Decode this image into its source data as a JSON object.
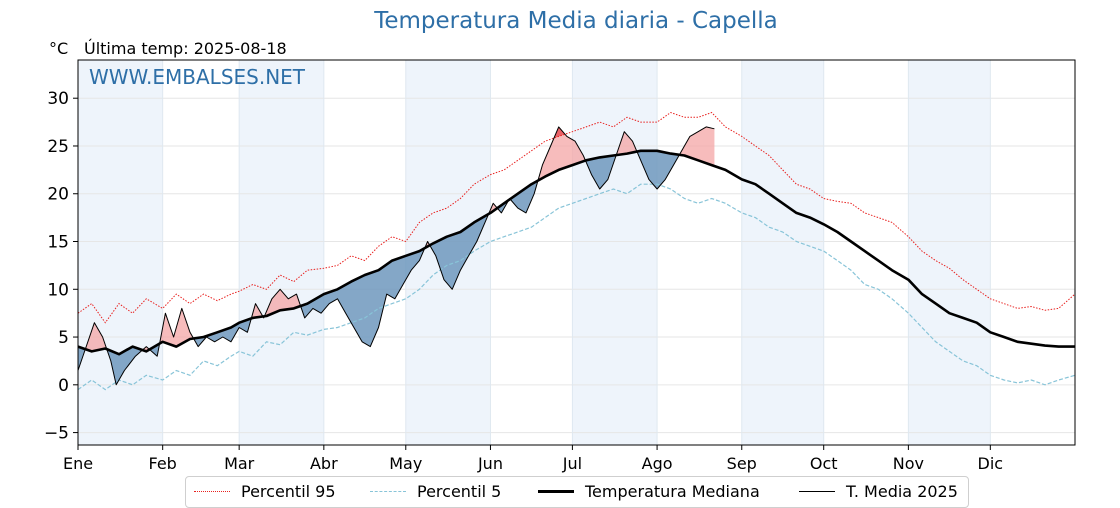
{
  "chart_data": {
    "type": "line",
    "title": "Temperatura Media diaria - Capella",
    "unit_label": "°C",
    "last_temp_label": "Última temp: 2025-08-18",
    "watermark": "WWW.EMBALSES.NET",
    "ylim": [
      -6.3,
      34.0
    ],
    "yticks": [
      -5,
      0,
      5,
      10,
      15,
      20,
      25,
      30
    ],
    "xlim": [
      1,
      366
    ],
    "month_labels": [
      "Ene",
      "Feb",
      "Mar",
      "Abr",
      "May",
      "Jun",
      "Jul",
      "Ago",
      "Sep",
      "Oct",
      "Nov",
      "Dic"
    ],
    "month_starts": [
      1,
      32,
      60,
      91,
      121,
      152,
      182,
      213,
      244,
      274,
      305,
      335
    ],
    "grid": true,
    "legend_position": "bottom",
    "colors": {
      "p95": "#e8211f",
      "p5": "#88c4d8",
      "median": "#000000",
      "t2025": "#000000",
      "above_fill": "#f4a6a6",
      "above_fill_strong": "#e8585d",
      "below_fill": "#6f98bd",
      "stripe": "#eef4fb",
      "title": "#2e6fa7",
      "watermark": "#2e6fa7"
    },
    "series": [
      {
        "name": "Percentil 95",
        "style": "dotted-red",
        "points": [
          [
            1,
            7.5
          ],
          [
            6,
            8.5
          ],
          [
            11,
            6.5
          ],
          [
            16,
            8.5
          ],
          [
            21,
            7.5
          ],
          [
            26,
            9
          ],
          [
            32,
            8
          ],
          [
            37,
            9.5
          ],
          [
            42,
            8.5
          ],
          [
            47,
            9.5
          ],
          [
            52,
            8.8
          ],
          [
            57,
            9.5
          ],
          [
            60,
            9.8
          ],
          [
            65,
            10.5
          ],
          [
            70,
            10
          ],
          [
            75,
            11.5
          ],
          [
            80,
            10.8
          ],
          [
            85,
            12
          ],
          [
            91,
            12.2
          ],
          [
            96,
            12.5
          ],
          [
            101,
            13.5
          ],
          [
            106,
            13
          ],
          [
            111,
            14.5
          ],
          [
            116,
            15.5
          ],
          [
            121,
            15
          ],
          [
            126,
            17
          ],
          [
            131,
            18
          ],
          [
            136,
            18.5
          ],
          [
            141,
            19.5
          ],
          [
            146,
            21
          ],
          [
            152,
            22
          ],
          [
            157,
            22.5
          ],
          [
            162,
            23.5
          ],
          [
            167,
            24.5
          ],
          [
            172,
            25.5
          ],
          [
            177,
            26
          ],
          [
            182,
            26.5
          ],
          [
            187,
            27
          ],
          [
            192,
            27.5
          ],
          [
            197,
            27
          ],
          [
            202,
            28
          ],
          [
            207,
            27.5
          ],
          [
            213,
            27.5
          ],
          [
            218,
            28.5
          ],
          [
            223,
            28
          ],
          [
            228,
            28
          ],
          [
            233,
            28.5
          ],
          [
            238,
            27
          ],
          [
            244,
            26
          ],
          [
            249,
            25
          ],
          [
            254,
            24
          ],
          [
            259,
            22.5
          ],
          [
            264,
            21
          ],
          [
            269,
            20.5
          ],
          [
            274,
            19.5
          ],
          [
            279,
            19.2
          ],
          [
            284,
            19
          ],
          [
            289,
            18
          ],
          [
            294,
            17.5
          ],
          [
            299,
            17
          ],
          [
            305,
            15.5
          ],
          [
            310,
            14
          ],
          [
            315,
            13
          ],
          [
            320,
            12.2
          ],
          [
            325,
            11
          ],
          [
            330,
            10
          ],
          [
            335,
            9
          ],
          [
            340,
            8.5
          ],
          [
            345,
            8
          ],
          [
            350,
            8.2
          ],
          [
            355,
            7.8
          ],
          [
            360,
            8
          ],
          [
            366,
            9.5
          ]
        ]
      },
      {
        "name": "Percentil 5",
        "style": "dashed-lightblue",
        "points": [
          [
            1,
            -0.5
          ],
          [
            6,
            0.5
          ],
          [
            11,
            -0.5
          ],
          [
            16,
            0.5
          ],
          [
            21,
            0
          ],
          [
            26,
            1
          ],
          [
            32,
            0.5
          ],
          [
            37,
            1.5
          ],
          [
            42,
            1
          ],
          [
            47,
            2.5
          ],
          [
            52,
            2
          ],
          [
            57,
            3
          ],
          [
            60,
            3.5
          ],
          [
            65,
            3
          ],
          [
            70,
            4.5
          ],
          [
            75,
            4.2
          ],
          [
            80,
            5.5
          ],
          [
            85,
            5.2
          ],
          [
            91,
            5.8
          ],
          [
            96,
            6
          ],
          [
            101,
            6.5
          ],
          [
            106,
            7
          ],
          [
            111,
            8
          ],
          [
            116,
            8.5
          ],
          [
            121,
            9
          ],
          [
            126,
            10
          ],
          [
            131,
            11.5
          ],
          [
            136,
            12.5
          ],
          [
            141,
            13
          ],
          [
            146,
            14
          ],
          [
            152,
            15
          ],
          [
            157,
            15.5
          ],
          [
            162,
            16
          ],
          [
            167,
            16.5
          ],
          [
            172,
            17.5
          ],
          [
            177,
            18.5
          ],
          [
            182,
            19
          ],
          [
            187,
            19.5
          ],
          [
            192,
            20
          ],
          [
            197,
            20.5
          ],
          [
            202,
            20
          ],
          [
            207,
            21
          ],
          [
            213,
            21
          ],
          [
            218,
            20.5
          ],
          [
            223,
            19.5
          ],
          [
            228,
            19
          ],
          [
            233,
            19.5
          ],
          [
            238,
            19
          ],
          [
            244,
            18
          ],
          [
            249,
            17.5
          ],
          [
            254,
            16.5
          ],
          [
            259,
            16
          ],
          [
            264,
            15
          ],
          [
            269,
            14.5
          ],
          [
            274,
            14
          ],
          [
            279,
            13
          ],
          [
            284,
            12
          ],
          [
            289,
            10.5
          ],
          [
            294,
            10
          ],
          [
            299,
            9
          ],
          [
            305,
            7.5
          ],
          [
            310,
            6
          ],
          [
            315,
            4.5
          ],
          [
            320,
            3.5
          ],
          [
            325,
            2.5
          ],
          [
            330,
            2
          ],
          [
            335,
            1
          ],
          [
            340,
            0.5
          ],
          [
            345,
            0.2
          ],
          [
            350,
            0.5
          ],
          [
            355,
            0
          ],
          [
            360,
            0.5
          ],
          [
            366,
            1
          ]
        ]
      },
      {
        "name": "Temperatura Mediana",
        "style": "thick-black",
        "points": [
          [
            1,
            4
          ],
          [
            6,
            3.5
          ],
          [
            11,
            3.8
          ],
          [
            16,
            3.2
          ],
          [
            21,
            4
          ],
          [
            26,
            3.5
          ],
          [
            32,
            4.5
          ],
          [
            37,
            4
          ],
          [
            42,
            4.8
          ],
          [
            47,
            5
          ],
          [
            52,
            5.5
          ],
          [
            57,
            6
          ],
          [
            60,
            6.5
          ],
          [
            65,
            7
          ],
          [
            70,
            7.2
          ],
          [
            75,
            7.8
          ],
          [
            80,
            8
          ],
          [
            85,
            8.5
          ],
          [
            91,
            9.5
          ],
          [
            96,
            10
          ],
          [
            101,
            10.8
          ],
          [
            106,
            11.5
          ],
          [
            111,
            12
          ],
          [
            116,
            13
          ],
          [
            121,
            13.5
          ],
          [
            126,
            14
          ],
          [
            131,
            14.8
          ],
          [
            136,
            15.5
          ],
          [
            141,
            16
          ],
          [
            146,
            17
          ],
          [
            152,
            18
          ],
          [
            157,
            19
          ],
          [
            162,
            20
          ],
          [
            167,
            21
          ],
          [
            172,
            21.8
          ],
          [
            177,
            22.5
          ],
          [
            182,
            23
          ],
          [
            187,
            23.5
          ],
          [
            192,
            23.8
          ],
          [
            197,
            24
          ],
          [
            202,
            24.2
          ],
          [
            207,
            24.5
          ],
          [
            213,
            24.5
          ],
          [
            218,
            24.2
          ],
          [
            223,
            24
          ],
          [
            228,
            23.5
          ],
          [
            233,
            23
          ],
          [
            238,
            22.5
          ],
          [
            244,
            21.5
          ],
          [
            249,
            21
          ],
          [
            254,
            20
          ],
          [
            259,
            19
          ],
          [
            264,
            18
          ],
          [
            269,
            17.5
          ],
          [
            274,
            16.8
          ],
          [
            279,
            16
          ],
          [
            284,
            15
          ],
          [
            289,
            14
          ],
          [
            294,
            13
          ],
          [
            299,
            12
          ],
          [
            305,
            11
          ],
          [
            310,
            9.5
          ],
          [
            315,
            8.5
          ],
          [
            320,
            7.5
          ],
          [
            325,
            7
          ],
          [
            330,
            6.5
          ],
          [
            335,
            5.5
          ],
          [
            340,
            5
          ],
          [
            345,
            4.5
          ],
          [
            350,
            4.3
          ],
          [
            355,
            4.1
          ],
          [
            360,
            4
          ],
          [
            366,
            4
          ]
        ]
      },
      {
        "name": "T. Media 2025",
        "style": "thin-black",
        "points": [
          [
            1,
            1.5
          ],
          [
            4,
            4
          ],
          [
            7,
            6.5
          ],
          [
            10,
            5
          ],
          [
            13,
            2.5
          ],
          [
            15,
            0
          ],
          [
            18,
            1.5
          ],
          [
            22,
            3
          ],
          [
            26,
            4
          ],
          [
            30,
            3
          ],
          [
            33,
            7.5
          ],
          [
            36,
            5
          ],
          [
            39,
            8
          ],
          [
            42,
            5.5
          ],
          [
            45,
            4
          ],
          [
            48,
            5
          ],
          [
            51,
            4.5
          ],
          [
            54,
            5
          ],
          [
            57,
            4.5
          ],
          [
            60,
            6
          ],
          [
            63,
            5.5
          ],
          [
            66,
            8.5
          ],
          [
            69,
            7
          ],
          [
            72,
            9
          ],
          [
            75,
            10
          ],
          [
            78,
            9
          ],
          [
            81,
            9.5
          ],
          [
            84,
            7
          ],
          [
            87,
            8
          ],
          [
            90,
            7.5
          ],
          [
            93,
            8.5
          ],
          [
            96,
            9
          ],
          [
            99,
            7.5
          ],
          [
            102,
            6
          ],
          [
            105,
            4.5
          ],
          [
            108,
            4
          ],
          [
            111,
            6
          ],
          [
            114,
            9.5
          ],
          [
            117,
            9
          ],
          [
            120,
            10.5
          ],
          [
            123,
            12
          ],
          [
            126,
            13
          ],
          [
            129,
            15
          ],
          [
            132,
            13.5
          ],
          [
            135,
            11
          ],
          [
            138,
            10
          ],
          [
            141,
            12
          ],
          [
            144,
            13.5
          ],
          [
            147,
            15
          ],
          [
            150,
            17
          ],
          [
            153,
            19
          ],
          [
            156,
            18
          ],
          [
            159,
            19.5
          ],
          [
            162,
            18.5
          ],
          [
            165,
            18
          ],
          [
            168,
            20
          ],
          [
            171,
            23
          ],
          [
            174,
            25
          ],
          [
            177,
            27
          ],
          [
            180,
            26
          ],
          [
            183,
            25.5
          ],
          [
            186,
            24
          ],
          [
            189,
            22
          ],
          [
            192,
            20.5
          ],
          [
            195,
            21.5
          ],
          [
            198,
            24
          ],
          [
            201,
            26.5
          ],
          [
            204,
            25.5
          ],
          [
            207,
            23.5
          ],
          [
            210,
            21.5
          ],
          [
            213,
            20.5
          ],
          [
            216,
            21.5
          ],
          [
            219,
            23
          ],
          [
            222,
            24.5
          ],
          [
            225,
            26
          ],
          [
            228,
            26.5
          ],
          [
            231,
            27
          ],
          [
            234,
            26.8
          ]
        ]
      }
    ]
  }
}
